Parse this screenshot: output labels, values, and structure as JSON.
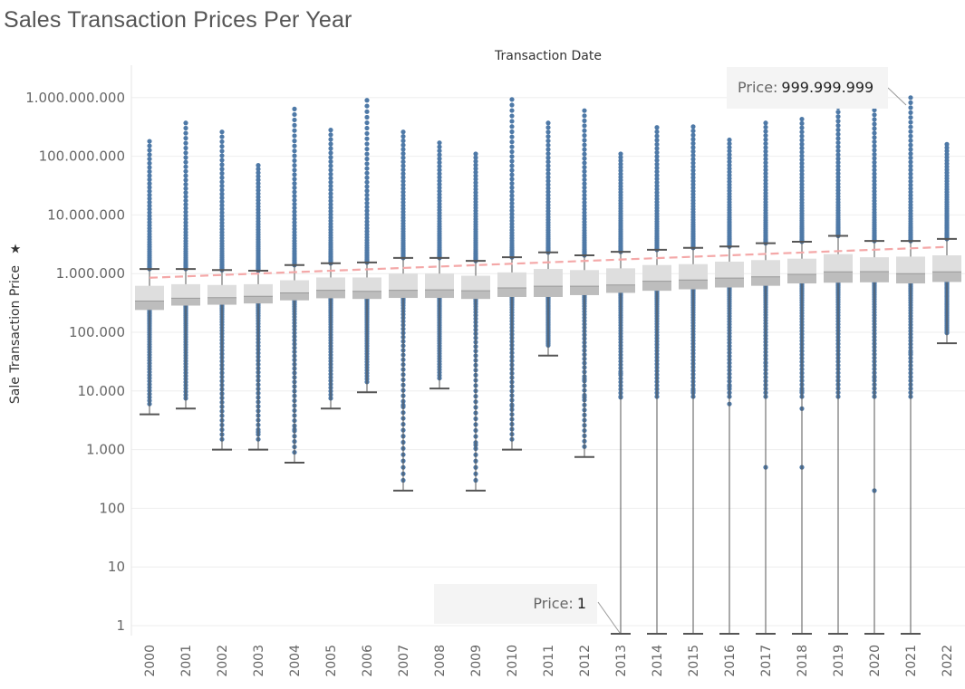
{
  "page": {
    "title": "Sales Transaction Prices Per Year",
    "column_header": "Transaction Date",
    "y_axis_title": "Sale Transaction Price"
  },
  "tooltips": {
    "max": {
      "label": "Price:",
      "value": "999.999.999"
    },
    "min": {
      "label": "Price:",
      "value": "1"
    }
  },
  "colors": {
    "points": "#4e79a7",
    "whisker": "#555555",
    "box_upper": "#dedede",
    "box_lower": "#bdbdbd",
    "trend": "#f4a8a8",
    "grid": "#eeeeee"
  },
  "chart_data": {
    "type": "boxplot",
    "title": "Sales Transaction Prices Per Year",
    "xlabel": "Transaction Date",
    "ylabel": "Sale Transaction Price",
    "y_scale": "log",
    "ylim": [
      0.7,
      1500000000
    ],
    "y_ticks": [
      1,
      10,
      100,
      1000,
      10000,
      100000,
      1000000,
      10000000,
      100000000,
      1000000000
    ],
    "y_tick_labels": [
      "1",
      "10",
      "100",
      "1.000",
      "10.000",
      "100.000",
      "1.000.000",
      "10.000.000",
      "100.000.000",
      "1.000.000.000"
    ],
    "categories": [
      "2000",
      "2001",
      "2002",
      "2003",
      "2004",
      "2005",
      "2006",
      "2007",
      "2008",
      "2009",
      "2010",
      "2011",
      "2012",
      "2013",
      "2014",
      "2015",
      "2016",
      "2017",
      "2018",
      "2019",
      "2020",
      "2021",
      "2022"
    ],
    "whisker_low": [
      4000,
      5000,
      1000,
      1000,
      600,
      5000,
      9500,
      200,
      11000,
      200,
      1000,
      40000,
      750,
      1,
      1,
      1,
      1,
      1,
      1,
      1,
      1,
      1,
      65000
    ],
    "q1": [
      240000,
      285000,
      295000,
      310000,
      350000,
      380000,
      370000,
      385000,
      385000,
      370000,
      400000,
      400000,
      430000,
      470000,
      510000,
      540000,
      580000,
      620000,
      680000,
      700000,
      710000,
      680000,
      720000
    ],
    "median": [
      340000,
      380000,
      390000,
      410000,
      470000,
      520000,
      500000,
      520000,
      530000,
      510000,
      570000,
      610000,
      610000,
      640000,
      740000,
      780000,
      840000,
      880000,
      970000,
      1070000,
      1080000,
      1000000,
      1070000
    ],
    "q3": [
      620000,
      660000,
      640000,
      660000,
      770000,
      860000,
      860000,
      1000000,
      1000000,
      920000,
      1050000,
      1200000,
      1150000,
      1230000,
      1400000,
      1450000,
      1600000,
      1700000,
      1800000,
      2150000,
      1900000,
      1950000,
      2050000
    ],
    "whisker_high": [
      1200000,
      1200000,
      1150000,
      1120000,
      1400000,
      1500000,
      1550000,
      1850000,
      1850000,
      1650000,
      1900000,
      2300000,
      2050000,
      2350000,
      2550000,
      2750000,
      2900000,
      3300000,
      3500000,
      4400000,
      3600000,
      3600000,
      3900000
    ],
    "max": [
      180000000,
      370000000,
      260000000,
      70000000,
      640000000,
      280000000,
      900000000,
      260000000,
      170000000,
      110000000,
      930000000,
      370000000,
      600000000,
      110000000,
      310000000,
      320000000,
      190000000,
      370000000,
      430000000,
      820000000,
      740000000,
      999999999,
      160000000
    ],
    "min": [
      4000,
      5000,
      1000,
      1000,
      600,
      5000,
      9500,
      200,
      11000,
      200,
      1000,
      40000,
      750,
      1,
      1,
      1,
      1,
      1,
      1,
      1,
      1,
      1,
      65000
    ],
    "isolated_outliers": [
      [],
      [],
      [],
      [
        2000
      ],
      [
        2200
      ],
      [],
      [],
      [
        5700
      ],
      [],
      [
        1200
      ],
      [
        5600
      ],
      [],
      [
        7800,
        16000
      ],
      [
        7800,
        20000
      ],
      [],
      [
        10000
      ],
      [
        6000,
        12000
      ],
      [
        500,
        30000
      ],
      [
        500,
        5000,
        10000
      ],
      [
        15000
      ],
      [
        200,
        17000
      ],
      [
        45000
      ],
      []
    ],
    "trend_line": {
      "x_start": "2000",
      "x_end": "2022",
      "y_start": 850000,
      "y_end": 2850000,
      "style": "dashed"
    },
    "grid": true
  }
}
